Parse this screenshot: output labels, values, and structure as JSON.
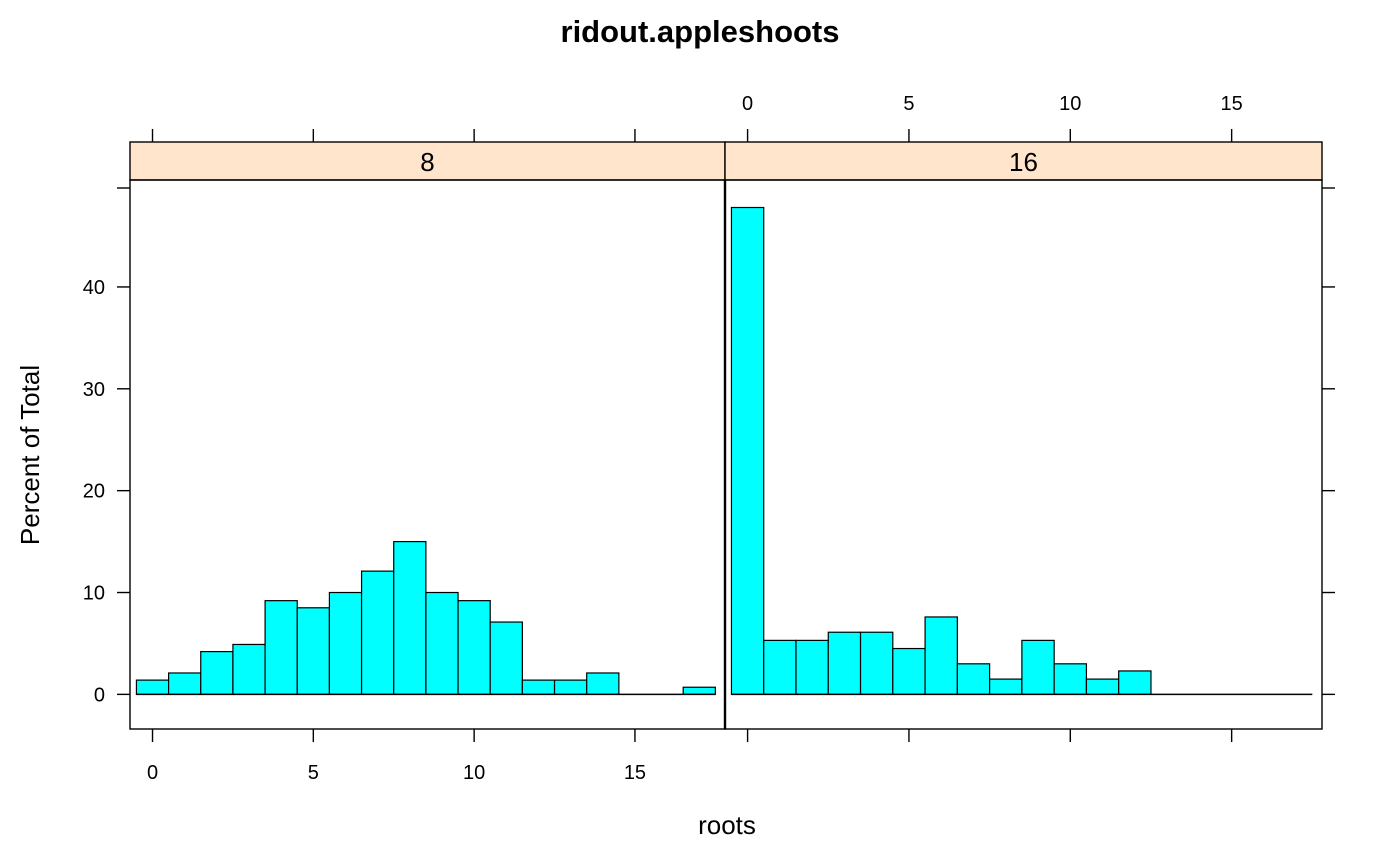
{
  "chart_data": {
    "type": "bar",
    "title": "ridout.appleshoots",
    "xlabel": "roots",
    "ylabel": "Percent of Total",
    "x_ticks": [
      "0",
      "5",
      "10",
      "15"
    ],
    "y_ticks": [
      "0",
      "10",
      "20",
      "30",
      "40"
    ],
    "xlim": [
      -0.7,
      17.8
    ],
    "ylim": [
      -3.4,
      50.5
    ],
    "strip_color": "#ffe5cc",
    "bar_color": "#00ffff",
    "bin_starts": [
      -0.5,
      0.5,
      1.5,
      2.5,
      3.5,
      4.5,
      5.5,
      6.5,
      7.5,
      8.5,
      9.5,
      10.5,
      11.5,
      12.5,
      13.5,
      14.5,
      15.5,
      16.5
    ],
    "panels": [
      {
        "strip": "8",
        "values": [
          1.4,
          2.1,
          4.2,
          4.9,
          9.2,
          8.5,
          10.0,
          12.1,
          15.0,
          10.0,
          9.2,
          7.1,
          1.4,
          1.4,
          2.1,
          0,
          0,
          0.7
        ]
      },
      {
        "strip": "16",
        "values": [
          47.8,
          5.3,
          5.3,
          6.1,
          6.1,
          4.5,
          7.6,
          3.0,
          1.5,
          5.3,
          3.0,
          1.5,
          2.3,
          0,
          0,
          0,
          0,
          0
        ]
      }
    ]
  }
}
